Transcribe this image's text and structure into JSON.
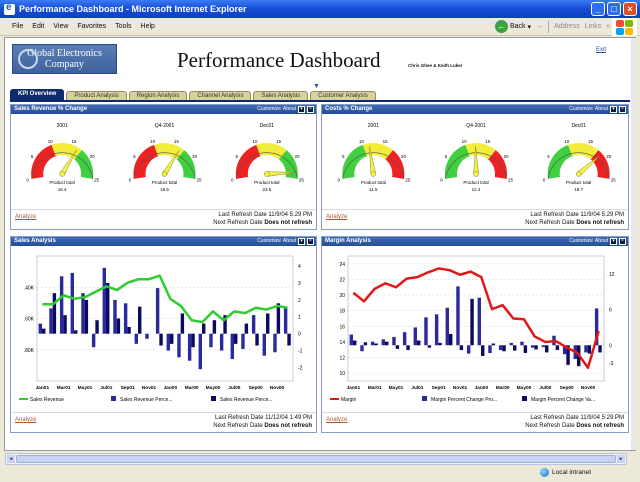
{
  "window": {
    "title": "Performance Dashboard - Microsoft Internet Explorer"
  },
  "menu": [
    "File",
    "Edit",
    "View",
    "Favorites",
    "Tools",
    "Help"
  ],
  "toolbar": {
    "back": "Back",
    "address": "Address",
    "links": "Links"
  },
  "header": {
    "logo_line1": "Global Electronics",
    "logo_line2": "Company",
    "title": "Performance Dashboard",
    "authors": "Chris Ghee & Keith Luker",
    "exit": "Exit"
  },
  "tabs": [
    {
      "label": "KPI Overview",
      "active": true
    },
    {
      "label": "Product Analysis",
      "active": false
    },
    {
      "label": "Region Analysis",
      "active": false
    },
    {
      "label": "Channel Analysis",
      "active": false
    },
    {
      "label": "Sales Analysis",
      "active": false
    },
    {
      "label": "Customer Analysis",
      "active": false
    }
  ],
  "panel_controls": {
    "customize": "Customize",
    "about": "About"
  },
  "panels": {
    "sales_revenue": {
      "title": "Sales Revenue % Change",
      "analyze": "Analyze",
      "last_refresh": "Last Refresh Date 11/9/04 5:29 PM",
      "next_refresh_label": "Next Refresh Date ",
      "next_refresh_value": "Does not refresh"
    },
    "costs": {
      "title": "Costs % Change",
      "analyze": "Analyze",
      "last_refresh": "Last Refresh Date 11/9/04 5:29 PM",
      "next_refresh_label": "Next Refresh Date ",
      "next_refresh_value": "Does not refresh"
    },
    "sales_analysis": {
      "title": "Sales Analysis",
      "analyze": "Analyze",
      "last_refresh": "Last Refresh Date 11/12/04 1:49 PM",
      "next_refresh_label": "Next Refresh Date ",
      "next_refresh_value": "Does not refresh"
    },
    "margin_analysis": {
      "title": "Margin Analysis",
      "analyze": "Analyze",
      "last_refresh": "Last Refresh Date 11/9/04 5:29 PM",
      "next_refresh_label": "Next Refresh Date ",
      "next_refresh_value": "Does not refresh"
    }
  },
  "status": {
    "zone": "Local intranet"
  },
  "colors": {
    "accent": "#0d2a6a",
    "header": "#234e97",
    "bar": "#2a2a9c",
    "line_green": "#2ecc2e",
    "line_red": "#e01818"
  },
  "chart_data": [
    {
      "type": "gauge",
      "panel": "sales_revenue",
      "gauges": [
        {
          "title": "2001",
          "ticks": [
            "0",
            "5",
            "10",
            "15",
            "20",
            "25"
          ],
          "label": "Product total",
          "value": 16.4,
          "value_text": "16.4",
          "max": 25
        },
        {
          "title": "Q4-2001",
          "ticks": [
            "0",
            "5",
            "10",
            "15",
            "20",
            "25"
          ],
          "label": "Product total",
          "value": 16.5,
          "value_text": "16.5",
          "max": 25
        },
        {
          "title": "Dec01",
          "ticks": [
            "0",
            "5",
            "10",
            "15",
            "20",
            "25"
          ],
          "label": "Product total",
          "value": 23.5,
          "value_text": "23.5",
          "max": 25
        }
      ]
    },
    {
      "type": "gauge",
      "panel": "costs",
      "gauges": [
        {
          "title": "2001",
          "ticks": [
            "0",
            "5",
            "10",
            "15",
            "20",
            "25"
          ],
          "label": "Product total",
          "value": 11.5,
          "value_text": "11.5",
          "max": 25
        },
        {
          "title": "Q4-2001",
          "ticks": [
            "0",
            "5",
            "10",
            "15",
            "20",
            "25"
          ],
          "label": "Product total",
          "value": 12.4,
          "value_text": "12.4",
          "max": 25
        },
        {
          "title": "Dec01",
          "ticks": [
            "0",
            "5",
            "10",
            "15",
            "20",
            "25"
          ],
          "label": "Product total",
          "value": 18.7,
          "value_text": "18.7",
          "max": 25
        }
      ]
    },
    {
      "type": "bar+line",
      "panel": "sales_analysis",
      "categories": [
        "Jan01",
        "Feb01",
        "Mar01",
        "Apr01",
        "May01",
        "Jun01",
        "Jul01",
        "Aug01",
        "Sep01",
        "Oct01",
        "Nov01",
        "Dec01",
        "Jan00",
        "Feb00",
        "Mar00",
        "Apr00",
        "May00",
        "Jun00",
        "Jul00",
        "Aug00",
        "Sep00",
        "Oct00",
        "Nov00",
        "Dec00"
      ],
      "x_tick_labels": [
        "Jan01",
        "Mar01",
        "May01",
        "Jul01",
        "Sep01",
        "Nov01",
        "Jan00",
        "Mar00",
        "May00",
        "Jul00",
        "Sep00",
        "Nov00"
      ],
      "y_left_ticks": [
        ".40K",
        ".60K",
        ".80K"
      ],
      "y_right_ticks": [
        "4",
        "3",
        "2",
        "1",
        "0",
        "-1",
        "-2"
      ],
      "y_right_range": [
        -2.8,
        4.6
      ],
      "y_left_range": [
        0.3,
        1.0
      ],
      "series": [
        {
          "name": "Sales Revenue",
          "kind": "line",
          "axis": "left",
          "values": [
            0.73,
            0.73,
            0.78,
            0.76,
            0.77,
            0.8,
            0.83,
            0.81,
            0.85,
            0.87,
            0.87,
            0.89,
            0.76,
            0.72,
            0.64,
            0.63,
            0.69,
            0.64,
            0.69,
            0.68,
            0.71,
            0.7,
            0.72,
            0.71
          ]
        },
        {
          "name": "Sales Revenue Perce...",
          "kind": "bar",
          "axis": "right",
          "values": [
            0.6,
            1.5,
            3.4,
            3.6,
            2.4,
            -0.8,
            3.9,
            2.0,
            1.8,
            -0.6,
            -0.3,
            2.7,
            -1.0,
            -1.4,
            -1.6,
            -2.1,
            -0.8,
            -1.0,
            -1.5,
            -0.9,
            1.1,
            -1.3,
            -1.1,
            1.5
          ]
        },
        {
          "name": "Sales Revenue Perce...",
          "kind": "bar",
          "axis": "right",
          "values": [
            0.3,
            2.4,
            1.1,
            0.2,
            2.0,
            0.8,
            3.0,
            0.9,
            0.4,
            1.6,
            0.0,
            -0.7,
            -0.6,
            1.2,
            -0.8,
            0.6,
            0.8,
            1.1,
            -0.6,
            0.6,
            -0.7,
            1.2,
            1.8,
            -0.7
          ]
        }
      ]
    },
    {
      "type": "bar+line",
      "panel": "margin_analysis",
      "categories": [
        "Jan01",
        "Feb01",
        "Mar01",
        "Apr01",
        "May01",
        "Jun01",
        "Jul01",
        "Aug01",
        "Sep01",
        "Oct01",
        "Nov01",
        "Dec01",
        "Jan00",
        "Feb00",
        "Mar00",
        "Apr00",
        "May00",
        "Jun00",
        "Jul00",
        "Aug00",
        "Sep00",
        "Oct00",
        "Nov00",
        "Dec00"
      ],
      "x_tick_labels": [
        "Jan01",
        "Mar01",
        "May01",
        "Jul01",
        "Sep01",
        "Nov01",
        "Jan00",
        "Mar00",
        "May00",
        "Jul00",
        "Sep00",
        "Nov00"
      ],
      "y_left_ticks": [
        "24",
        "22",
        "20",
        "18",
        "16",
        "14",
        "12",
        "10"
      ],
      "y_left_range": [
        9,
        25
      ],
      "y_right_ticks": [
        "12",
        "6",
        "0",
        "-3"
      ],
      "y_right_range": [
        -6,
        15
      ],
      "series": [
        {
          "name": "Margin",
          "kind": "line",
          "axis": "left",
          "values": [
            20.3,
            19.2,
            20.8,
            21.5,
            21.0,
            22.1,
            22.3,
            22.9,
            23.4,
            23.2,
            22.6,
            23.0,
            22.3,
            18.2,
            18.7,
            17.0,
            16.9,
            14.7,
            14.0,
            14.1,
            13.3,
            12.6,
            10.7,
            15.4
          ]
        },
        {
          "name": "Margin Percent Change Pro...",
          "kind": "bar",
          "axis": "right",
          "values": [
            1.8,
            -1.0,
            0.6,
            1.0,
            1.4,
            2.2,
            3.0,
            4.7,
            5.2,
            6.3,
            9.9,
            -1.4,
            8.0,
            -1.3,
            -0.8,
            0.4,
            0.6,
            -0.4,
            -0.3,
            1.6,
            -1.5,
            -2.3,
            -1.2,
            6.2
          ]
        },
        {
          "name": "Margin Percent Change Va...",
          "kind": "bar",
          "axis": "right",
          "values": [
            0.8,
            0.5,
            0.3,
            0.6,
            -0.6,
            -0.8,
            0.8,
            -0.4,
            0.4,
            1.9,
            -0.8,
            7.8,
            -1.8,
            0.3,
            -1.0,
            -0.9,
            -1.3,
            -0.7,
            -1.2,
            -0.8,
            -3.3,
            -3.5,
            -1.4,
            -1.2
          ]
        }
      ]
    }
  ]
}
